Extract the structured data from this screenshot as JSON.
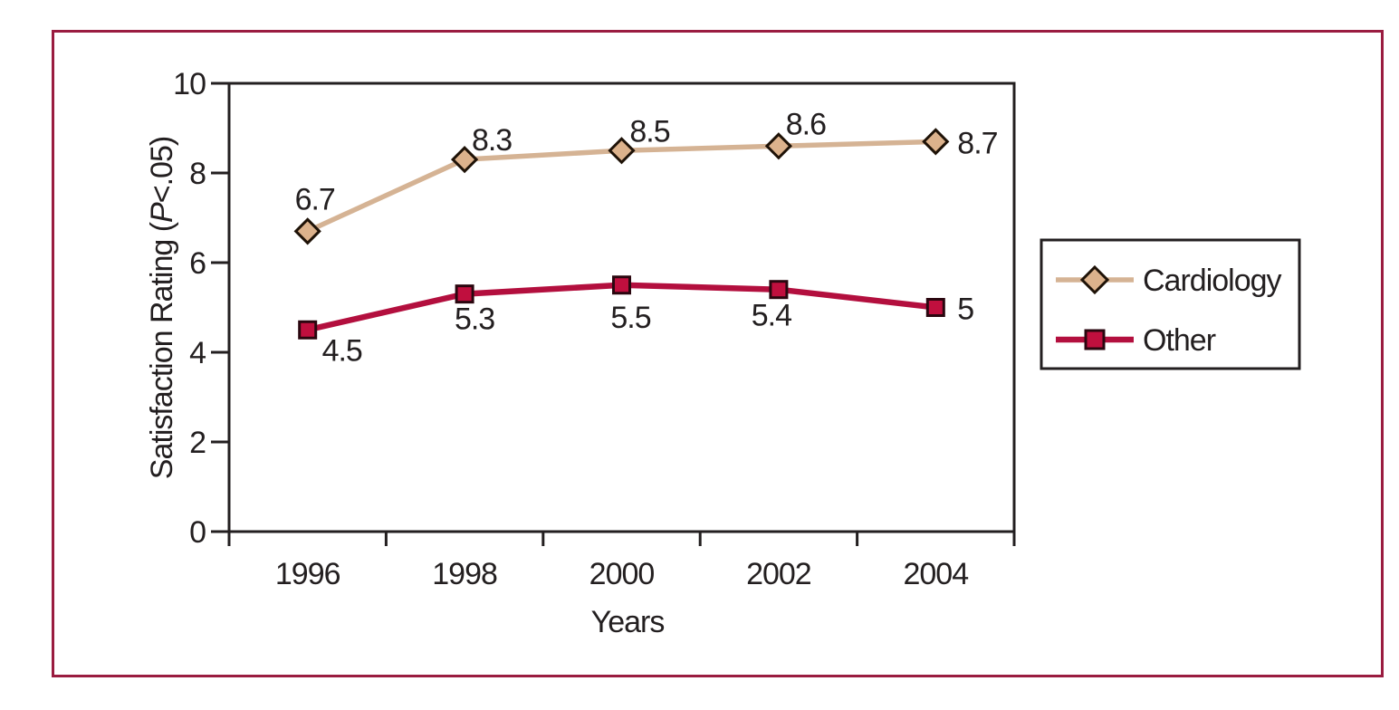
{
  "figure": {
    "frame_color": "#9a1c40",
    "background_color": "#ffffff"
  },
  "chart_data": {
    "type": "line",
    "title": "",
    "xlabel": "Years",
    "ylabel": "Satisfaction Rating (P<.05)",
    "ylabel_parts": {
      "prefix": "Satisfaction Rating (",
      "italic": "P",
      "suffix": "<.05)"
    },
    "categories": [
      "1996",
      "1998",
      "2000",
      "2002",
      "2004"
    ],
    "y_ticks": [
      0,
      2,
      4,
      6,
      8,
      10
    ],
    "ylim": [
      0,
      10
    ],
    "grid": false,
    "legend_position": "right",
    "axis_color": "#231f20",
    "series": [
      {
        "name": "Cardiology",
        "values": [
          6.7,
          8.3,
          8.5,
          8.6,
          8.7
        ],
        "labels": [
          "6.7",
          "8.3",
          "8.5",
          "8.6",
          "8.7"
        ],
        "line_color": "#d5b394",
        "line_width": 5.5,
        "marker": "diamond",
        "marker_fill": "#dcb28c",
        "marker_stroke": "#1e1207"
      },
      {
        "name": "Other",
        "values": [
          4.5,
          5.3,
          5.5,
          5.4,
          5
        ],
        "labels": [
          "4.5",
          "5.3",
          "5.5",
          "5.4",
          "5"
        ],
        "line_color": "#b30f3e",
        "line_width": 6.5,
        "marker": "square",
        "marker_fill": "#c00f3e",
        "marker_stroke": "#2a060f"
      }
    ]
  }
}
